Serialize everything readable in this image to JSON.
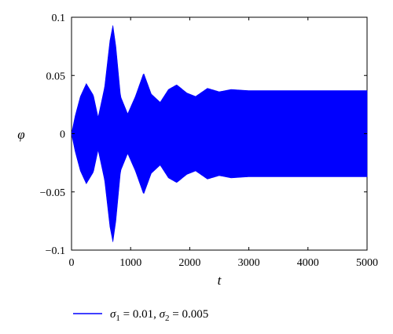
{
  "chart_data": {
    "type": "line",
    "title": "",
    "xlabel": "t",
    "ylabel": "φ",
    "xlim": [
      0,
      5000
    ],
    "ylim": [
      -0.1,
      0.1
    ],
    "x_ticks": [
      "0",
      "1000",
      "2000",
      "3000",
      "4000",
      "5000"
    ],
    "y_ticks": [
      "0.1",
      "0.05",
      "0",
      "−0.05",
      "−0.1"
    ],
    "grid": false,
    "legend_position": "bottom",
    "series": [
      {
        "name": "σ1 = 0.01, σ2 = 0.005",
        "color": "#0000ff",
        "description_envelope": "rapid oscillation symmetric about 0; amplitude envelope (data units):",
        "envelope": {
          "t": [
            0,
            60,
            150,
            250,
            370,
            450,
            560,
            650,
            700,
            750,
            830,
            950,
            1080,
            1220,
            1350,
            1500,
            1640,
            1780,
            1950,
            2100,
            2300,
            2500,
            2700,
            3000,
            5000
          ],
          "amplitude": [
            0,
            0.015,
            0.032,
            0.043,
            0.033,
            0.014,
            0.04,
            0.08,
            0.093,
            0.075,
            0.032,
            0.017,
            0.032,
            0.052,
            0.034,
            0.027,
            0.038,
            0.042,
            0.035,
            0.032,
            0.039,
            0.036,
            0.038,
            0.037,
            0.037
          ]
        }
      }
    ]
  },
  "legend": {
    "label_parts": {
      "sigma": "σ",
      "sub1": "1",
      "val1": " = 0.01, ",
      "sub2": "2",
      "val2": " = 0.005"
    }
  }
}
